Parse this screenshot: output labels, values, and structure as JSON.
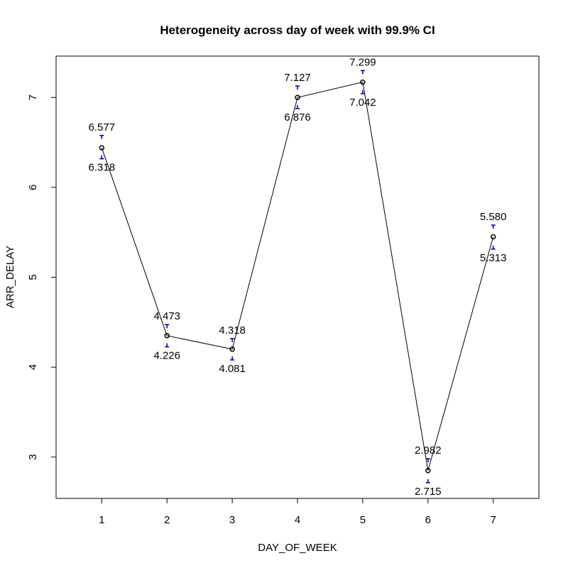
{
  "chart_data": {
    "type": "line",
    "title": "Heterogeneity across day of week with 99.9% CI",
    "xlabel": "DAY_OF_WEEK",
    "ylabel": "ARR_DELAY",
    "x": [
      1,
      2,
      3,
      4,
      5,
      6,
      7
    ],
    "x_tick_labels": [
      "1",
      "2",
      "3",
      "4",
      "5",
      "6",
      "7"
    ],
    "y_ticks": [
      3,
      4,
      5,
      6,
      7
    ],
    "y_tick_labels": [
      "3",
      "4",
      "5",
      "6",
      "7"
    ],
    "xlim": [
      0.3,
      7.7
    ],
    "ylim": [
      2.54,
      7.46
    ],
    "grid": false,
    "series": [
      {
        "values": [
          6.44,
          4.35,
          4.2,
          7.0,
          7.17,
          2.85,
          5.45
        ],
        "ci_upper": [
          6.577,
          4.473,
          4.318,
          7.127,
          7.299,
          2.982,
          5.58
        ],
        "ci_lower": [
          6.318,
          4.226,
          4.081,
          6.876,
          7.042,
          2.715,
          5.313
        ],
        "ci_upper_labels": [
          "6.577",
          "4.473",
          "4.318",
          "7.127",
          "7.299",
          "2.982",
          "5.580"
        ],
        "ci_lower_labels": [
          "6.318",
          "4.226",
          "4.081",
          "6.876",
          "7.042",
          "2.715",
          "5.313"
        ]
      }
    ],
    "colors": {
      "line": "#000000",
      "points": "#000000",
      "error_bars": "#0000cc"
    }
  }
}
